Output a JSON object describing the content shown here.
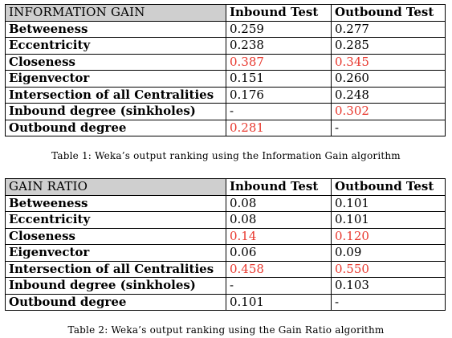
{
  "table1": {
    "title": "INFORMATION GAIN",
    "headers": [
      "Inbound Test",
      "Outbound Test"
    ],
    "rows": [
      {
        "label": "Betweeness",
        "inbound": "0.259",
        "outbound": "0.277",
        "inbound_highlight": false,
        "outbound_highlight": false
      },
      {
        "label": "Eccentricity",
        "inbound": "0.238",
        "outbound": "0.285",
        "inbound_highlight": false,
        "outbound_highlight": false
      },
      {
        "label": "Closeness",
        "inbound": "0.387",
        "outbound": "0.345",
        "inbound_highlight": true,
        "outbound_highlight": true
      },
      {
        "label": "Eigenvector",
        "inbound": "0.151",
        "outbound": "0.260",
        "inbound_highlight": false,
        "outbound_highlight": false
      },
      {
        "label": "Intersection of all Centralities",
        "inbound": "0.176",
        "outbound": "0.248",
        "inbound_highlight": false,
        "outbound_highlight": false
      },
      {
        "label": "Inbound degree (sinkholes)",
        "inbound": "-",
        "outbound": "0.302",
        "inbound_highlight": false,
        "outbound_highlight": true
      },
      {
        "label": "Outbound degree",
        "inbound": "0.281",
        "outbound": "-",
        "inbound_highlight": true,
        "outbound_highlight": false
      }
    ],
    "caption": "Table 1: Weka’s output ranking using the Information Gain algorithm"
  },
  "table2": {
    "title": "GAIN RATIO",
    "headers": [
      "Inbound Test",
      "Outbound Test"
    ],
    "rows": [
      {
        "label": "Betweeness",
        "inbound": "0.08",
        "outbound": "0.101",
        "inbound_highlight": false,
        "outbound_highlight": false
      },
      {
        "label": "Eccentricity",
        "inbound": "0.08",
        "outbound": "0.101",
        "inbound_highlight": false,
        "outbound_highlight": false
      },
      {
        "label": "Closeness",
        "inbound": "0.14",
        "outbound": "0.120",
        "inbound_highlight": true,
        "outbound_highlight": true
      },
      {
        "label": "Eigenvector",
        "inbound": "0.06",
        "outbound": "0.09",
        "inbound_highlight": false,
        "outbound_highlight": false
      },
      {
        "label": "Intersection of all Centralities",
        "inbound": "0.458",
        "outbound": "0.550",
        "inbound_highlight": true,
        "outbound_highlight": true
      },
      {
        "label": "Inbound degree (sinkholes)",
        "inbound": "-",
        "outbound": "0.103",
        "inbound_highlight": false,
        "outbound_highlight": false
      },
      {
        "label": "Outbound degree",
        "inbound": "0.101",
        "outbound": "-",
        "inbound_highlight": false,
        "outbound_highlight": false
      }
    ],
    "caption": "Table 2: Weka’s output ranking using the Gain Ratio algorithm"
  },
  "colors": {
    "highlight": "#e8382e",
    "header_background": "#cfcfcf"
  }
}
